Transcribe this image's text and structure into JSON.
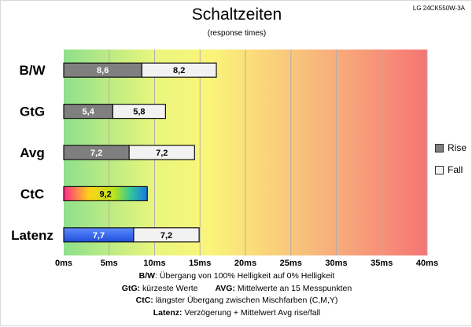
{
  "header": {
    "title": "Schaltzeiten",
    "subtitle": "(response times)",
    "model": "LG 24CK550W-3A"
  },
  "legend": [
    {
      "label": "Rise",
      "color": "#7f7f7f"
    },
    {
      "label": "Fall",
      "color": "#f2f2f2"
    }
  ],
  "notes": [
    {
      "key": "B/W",
      "text": ":  Übergang von 100% Helligkeit auf 0% Helligkeit"
    },
    {
      "key": "GtG:",
      "text": " kürzeste  Werte",
      "key2": "AVG:",
      "text2": " Mittelwerte  an 15 Messpunkten"
    },
    {
      "key": "CtC:",
      "text": " längster Übergang  zwischen Mischfarben (C,M,Y)"
    },
    {
      "key": "Latenz:",
      "text": " Verzögerung  + Mittelwert Avg rise/fall"
    }
  ],
  "chart_data": {
    "type": "bar",
    "orientation": "horizontal",
    "stacked": true,
    "categories": [
      "B/W",
      "GtG",
      "Avg",
      "CtC",
      "Latenz"
    ],
    "series": [
      {
        "name": "Rise",
        "values": [
          8.6,
          5.4,
          7.2,
          9.2,
          7.7
        ],
        "labels": [
          "8,6",
          "5,4",
          "7,2",
          "9,2",
          "7,7"
        ]
      },
      {
        "name": "Fall",
        "values": [
          8.2,
          5.8,
          7.2,
          null,
          7.2
        ],
        "labels": [
          "8,2",
          "5,8",
          "7,2",
          "",
          "7,2"
        ]
      }
    ],
    "special_fills": {
      "CtC": "rainbow",
      "Latenz": "blue"
    },
    "xlim": [
      0,
      40
    ],
    "xticks": [
      0,
      5,
      10,
      15,
      20,
      25,
      30,
      35,
      40
    ],
    "xtick_labels": [
      "0ms",
      "5ms",
      "10ms",
      "15ms",
      "20ms",
      "25ms",
      "30ms",
      "35ms",
      "40ms"
    ],
    "background_gradient": [
      "#92e08a",
      "#f6f77a",
      "#f8c27e",
      "#f57a7a"
    ],
    "grid": true,
    "legend_position": "right"
  }
}
